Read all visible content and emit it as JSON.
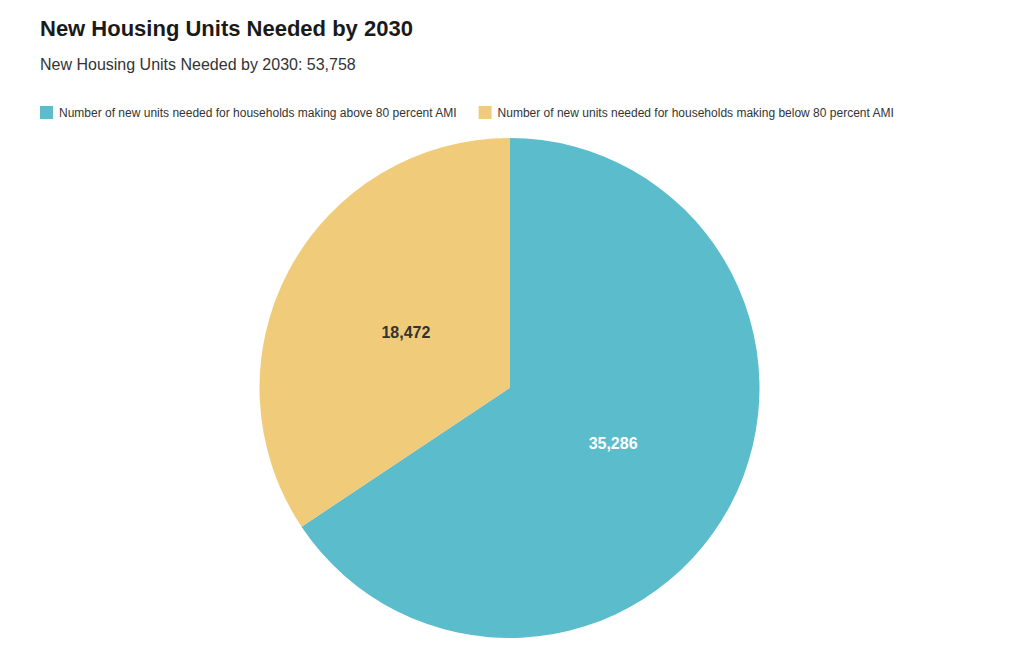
{
  "chart_data": {
    "type": "pie",
    "title": "New Housing Units Needed by 2030",
    "subtitle": "New Housing Units Needed by 2030: 53,758",
    "categories": [
      "Number of new units needed for households making above 80 percent AMI",
      "Number of new units needed for households making below 80 percent AMI"
    ],
    "values": [
      35286,
      18472
    ],
    "value_labels": [
      "35,286",
      "18,472"
    ],
    "colors": [
      "#5bbccc",
      "#f0cc7a"
    ],
    "data_labels": true,
    "legend": "top-left"
  }
}
